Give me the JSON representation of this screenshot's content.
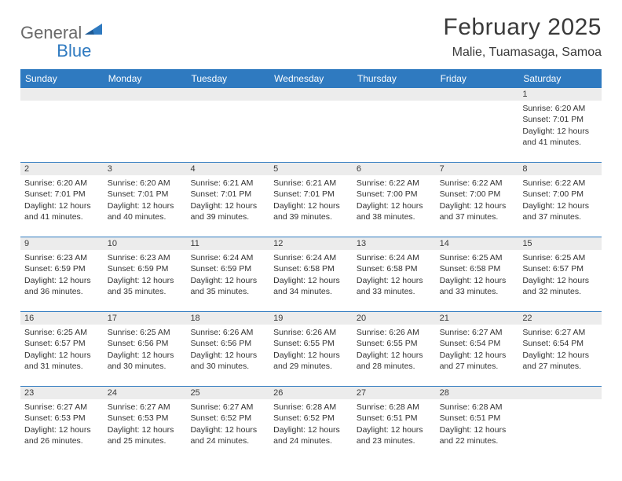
{
  "logo": {
    "text1": "General",
    "text2": "Blue"
  },
  "title": "February 2025",
  "location": "Malie, Tuamasaga, Samoa",
  "colors": {
    "header_bg": "#2f7ac0",
    "header_text": "#ffffff",
    "daynum_bg": "#ececec",
    "border": "#2f7ac0",
    "text": "#333333",
    "logo_gray": "#6a6a6a",
    "logo_blue": "#2f7ac0",
    "background": "#ffffff"
  },
  "days_of_week": [
    "Sunday",
    "Monday",
    "Tuesday",
    "Wednesday",
    "Thursday",
    "Friday",
    "Saturday"
  ],
  "weeks": [
    [
      {
        "n": "",
        "sunrise": "",
        "sunset": "",
        "daylight1": "",
        "daylight2": ""
      },
      {
        "n": "",
        "sunrise": "",
        "sunset": "",
        "daylight1": "",
        "daylight2": ""
      },
      {
        "n": "",
        "sunrise": "",
        "sunset": "",
        "daylight1": "",
        "daylight2": ""
      },
      {
        "n": "",
        "sunrise": "",
        "sunset": "",
        "daylight1": "",
        "daylight2": ""
      },
      {
        "n": "",
        "sunrise": "",
        "sunset": "",
        "daylight1": "",
        "daylight2": ""
      },
      {
        "n": "",
        "sunrise": "",
        "sunset": "",
        "daylight1": "",
        "daylight2": ""
      },
      {
        "n": "1",
        "sunrise": "Sunrise: 6:20 AM",
        "sunset": "Sunset: 7:01 PM",
        "daylight1": "Daylight: 12 hours",
        "daylight2": "and 41 minutes."
      }
    ],
    [
      {
        "n": "2",
        "sunrise": "Sunrise: 6:20 AM",
        "sunset": "Sunset: 7:01 PM",
        "daylight1": "Daylight: 12 hours",
        "daylight2": "and 41 minutes."
      },
      {
        "n": "3",
        "sunrise": "Sunrise: 6:20 AM",
        "sunset": "Sunset: 7:01 PM",
        "daylight1": "Daylight: 12 hours",
        "daylight2": "and 40 minutes."
      },
      {
        "n": "4",
        "sunrise": "Sunrise: 6:21 AM",
        "sunset": "Sunset: 7:01 PM",
        "daylight1": "Daylight: 12 hours",
        "daylight2": "and 39 minutes."
      },
      {
        "n": "5",
        "sunrise": "Sunrise: 6:21 AM",
        "sunset": "Sunset: 7:01 PM",
        "daylight1": "Daylight: 12 hours",
        "daylight2": "and 39 minutes."
      },
      {
        "n": "6",
        "sunrise": "Sunrise: 6:22 AM",
        "sunset": "Sunset: 7:00 PM",
        "daylight1": "Daylight: 12 hours",
        "daylight2": "and 38 minutes."
      },
      {
        "n": "7",
        "sunrise": "Sunrise: 6:22 AM",
        "sunset": "Sunset: 7:00 PM",
        "daylight1": "Daylight: 12 hours",
        "daylight2": "and 37 minutes."
      },
      {
        "n": "8",
        "sunrise": "Sunrise: 6:22 AM",
        "sunset": "Sunset: 7:00 PM",
        "daylight1": "Daylight: 12 hours",
        "daylight2": "and 37 minutes."
      }
    ],
    [
      {
        "n": "9",
        "sunrise": "Sunrise: 6:23 AM",
        "sunset": "Sunset: 6:59 PM",
        "daylight1": "Daylight: 12 hours",
        "daylight2": "and 36 minutes."
      },
      {
        "n": "10",
        "sunrise": "Sunrise: 6:23 AM",
        "sunset": "Sunset: 6:59 PM",
        "daylight1": "Daylight: 12 hours",
        "daylight2": "and 35 minutes."
      },
      {
        "n": "11",
        "sunrise": "Sunrise: 6:24 AM",
        "sunset": "Sunset: 6:59 PM",
        "daylight1": "Daylight: 12 hours",
        "daylight2": "and 35 minutes."
      },
      {
        "n": "12",
        "sunrise": "Sunrise: 6:24 AM",
        "sunset": "Sunset: 6:58 PM",
        "daylight1": "Daylight: 12 hours",
        "daylight2": "and 34 minutes."
      },
      {
        "n": "13",
        "sunrise": "Sunrise: 6:24 AM",
        "sunset": "Sunset: 6:58 PM",
        "daylight1": "Daylight: 12 hours",
        "daylight2": "and 33 minutes."
      },
      {
        "n": "14",
        "sunrise": "Sunrise: 6:25 AM",
        "sunset": "Sunset: 6:58 PM",
        "daylight1": "Daylight: 12 hours",
        "daylight2": "and 33 minutes."
      },
      {
        "n": "15",
        "sunrise": "Sunrise: 6:25 AM",
        "sunset": "Sunset: 6:57 PM",
        "daylight1": "Daylight: 12 hours",
        "daylight2": "and 32 minutes."
      }
    ],
    [
      {
        "n": "16",
        "sunrise": "Sunrise: 6:25 AM",
        "sunset": "Sunset: 6:57 PM",
        "daylight1": "Daylight: 12 hours",
        "daylight2": "and 31 minutes."
      },
      {
        "n": "17",
        "sunrise": "Sunrise: 6:25 AM",
        "sunset": "Sunset: 6:56 PM",
        "daylight1": "Daylight: 12 hours",
        "daylight2": "and 30 minutes."
      },
      {
        "n": "18",
        "sunrise": "Sunrise: 6:26 AM",
        "sunset": "Sunset: 6:56 PM",
        "daylight1": "Daylight: 12 hours",
        "daylight2": "and 30 minutes."
      },
      {
        "n": "19",
        "sunrise": "Sunrise: 6:26 AM",
        "sunset": "Sunset: 6:55 PM",
        "daylight1": "Daylight: 12 hours",
        "daylight2": "and 29 minutes."
      },
      {
        "n": "20",
        "sunrise": "Sunrise: 6:26 AM",
        "sunset": "Sunset: 6:55 PM",
        "daylight1": "Daylight: 12 hours",
        "daylight2": "and 28 minutes."
      },
      {
        "n": "21",
        "sunrise": "Sunrise: 6:27 AM",
        "sunset": "Sunset: 6:54 PM",
        "daylight1": "Daylight: 12 hours",
        "daylight2": "and 27 minutes."
      },
      {
        "n": "22",
        "sunrise": "Sunrise: 6:27 AM",
        "sunset": "Sunset: 6:54 PM",
        "daylight1": "Daylight: 12 hours",
        "daylight2": "and 27 minutes."
      }
    ],
    [
      {
        "n": "23",
        "sunrise": "Sunrise: 6:27 AM",
        "sunset": "Sunset: 6:53 PM",
        "daylight1": "Daylight: 12 hours",
        "daylight2": "and 26 minutes."
      },
      {
        "n": "24",
        "sunrise": "Sunrise: 6:27 AM",
        "sunset": "Sunset: 6:53 PM",
        "daylight1": "Daylight: 12 hours",
        "daylight2": "and 25 minutes."
      },
      {
        "n": "25",
        "sunrise": "Sunrise: 6:27 AM",
        "sunset": "Sunset: 6:52 PM",
        "daylight1": "Daylight: 12 hours",
        "daylight2": "and 24 minutes."
      },
      {
        "n": "26",
        "sunrise": "Sunrise: 6:28 AM",
        "sunset": "Sunset: 6:52 PM",
        "daylight1": "Daylight: 12 hours",
        "daylight2": "and 24 minutes."
      },
      {
        "n": "27",
        "sunrise": "Sunrise: 6:28 AM",
        "sunset": "Sunset: 6:51 PM",
        "daylight1": "Daylight: 12 hours",
        "daylight2": "and 23 minutes."
      },
      {
        "n": "28",
        "sunrise": "Sunrise: 6:28 AM",
        "sunset": "Sunset: 6:51 PM",
        "daylight1": "Daylight: 12 hours",
        "daylight2": "and 22 minutes."
      },
      {
        "n": "",
        "sunrise": "",
        "sunset": "",
        "daylight1": "",
        "daylight2": ""
      }
    ]
  ]
}
